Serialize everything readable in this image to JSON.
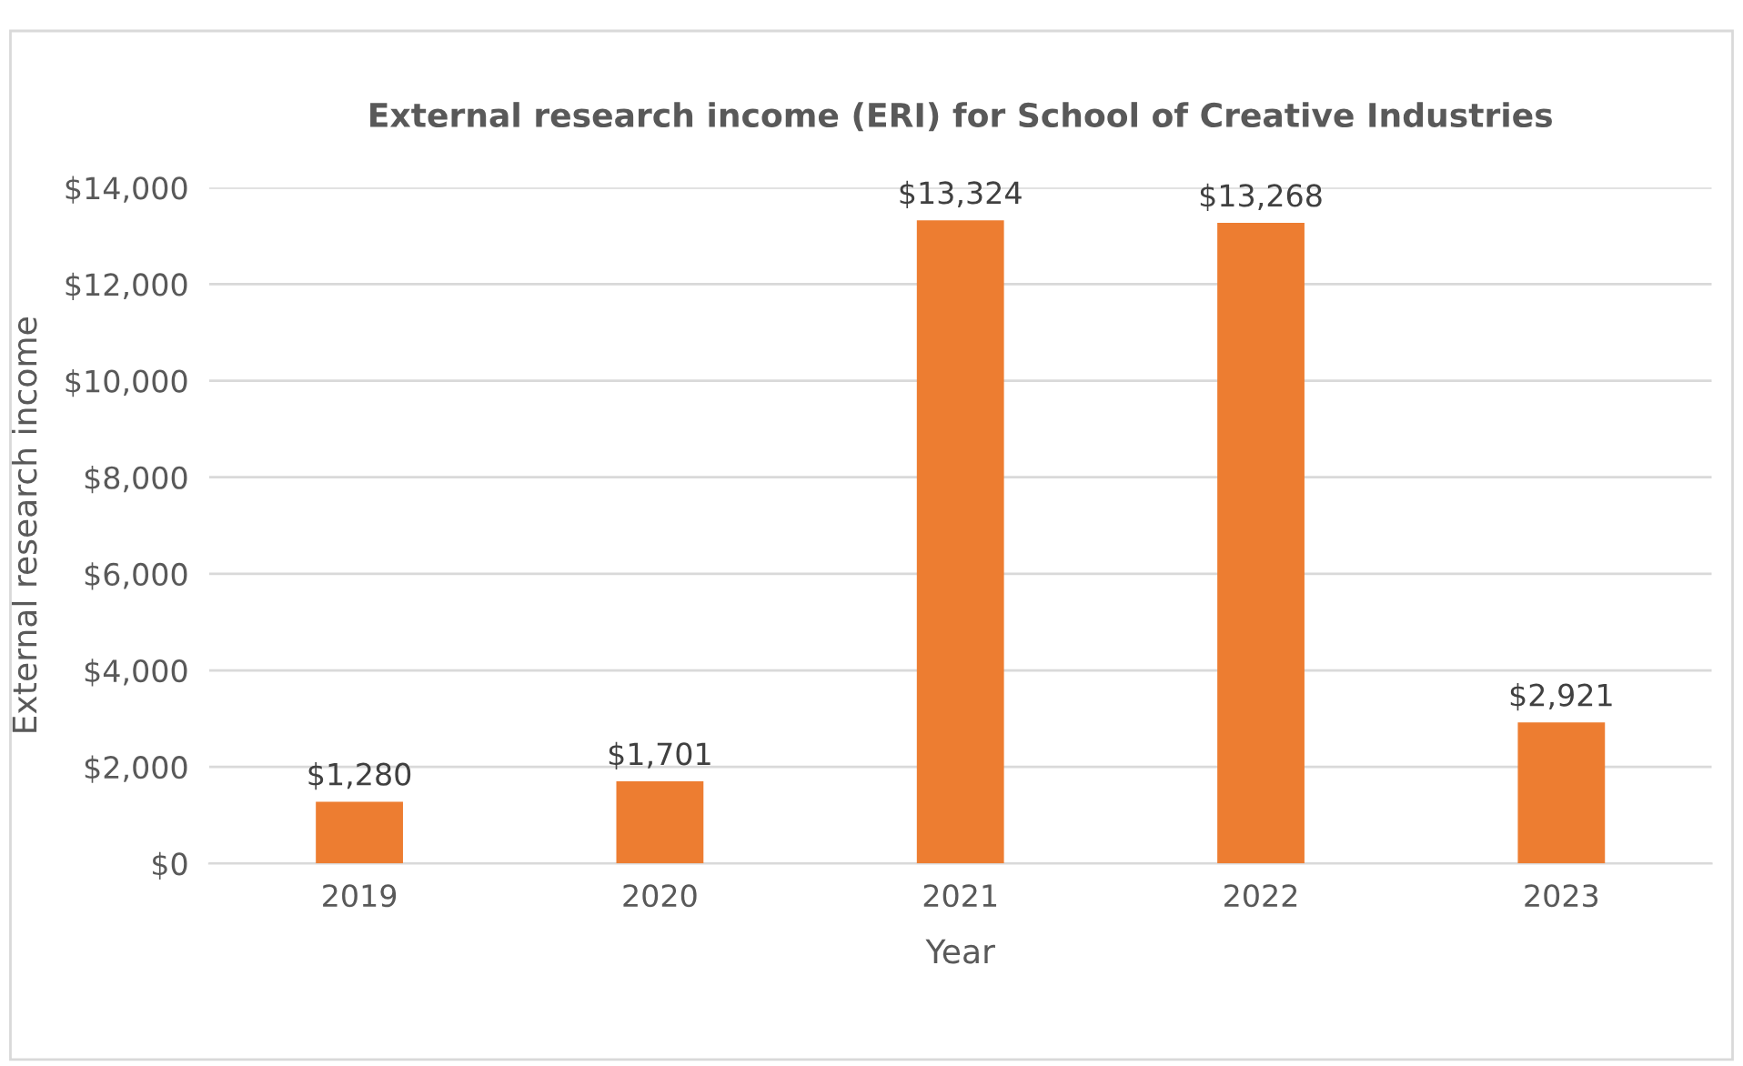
{
  "chart_data": {
    "type": "bar",
    "title": "External research income (ERI) for School of Creative Industries",
    "xlabel": "Year",
    "ylabel": "External research income",
    "categories": [
      "2019",
      "2020",
      "2021",
      "2022",
      "2023"
    ],
    "values": [
      1280,
      1701,
      13324,
      13268,
      2921
    ],
    "value_labels": [
      "$1,280",
      "$1,701",
      "$13,324",
      "$13,268",
      "$2,921"
    ],
    "color": "#ed7d31",
    "ylim": [
      0,
      14000
    ],
    "yticks": [
      {
        "value": 0,
        "label": "$0"
      },
      {
        "value": 2000,
        "label": "$2,000"
      },
      {
        "value": 4000,
        "label": "$4,000"
      },
      {
        "value": 6000,
        "label": "$6,000"
      },
      {
        "value": 8000,
        "label": "$8,000"
      },
      {
        "value": 10000,
        "label": "$10,000"
      },
      {
        "value": 12000,
        "label": "$12,000"
      },
      {
        "value": 14000,
        "label": "$14,000"
      }
    ],
    "grid": "y",
    "legend": false
  }
}
